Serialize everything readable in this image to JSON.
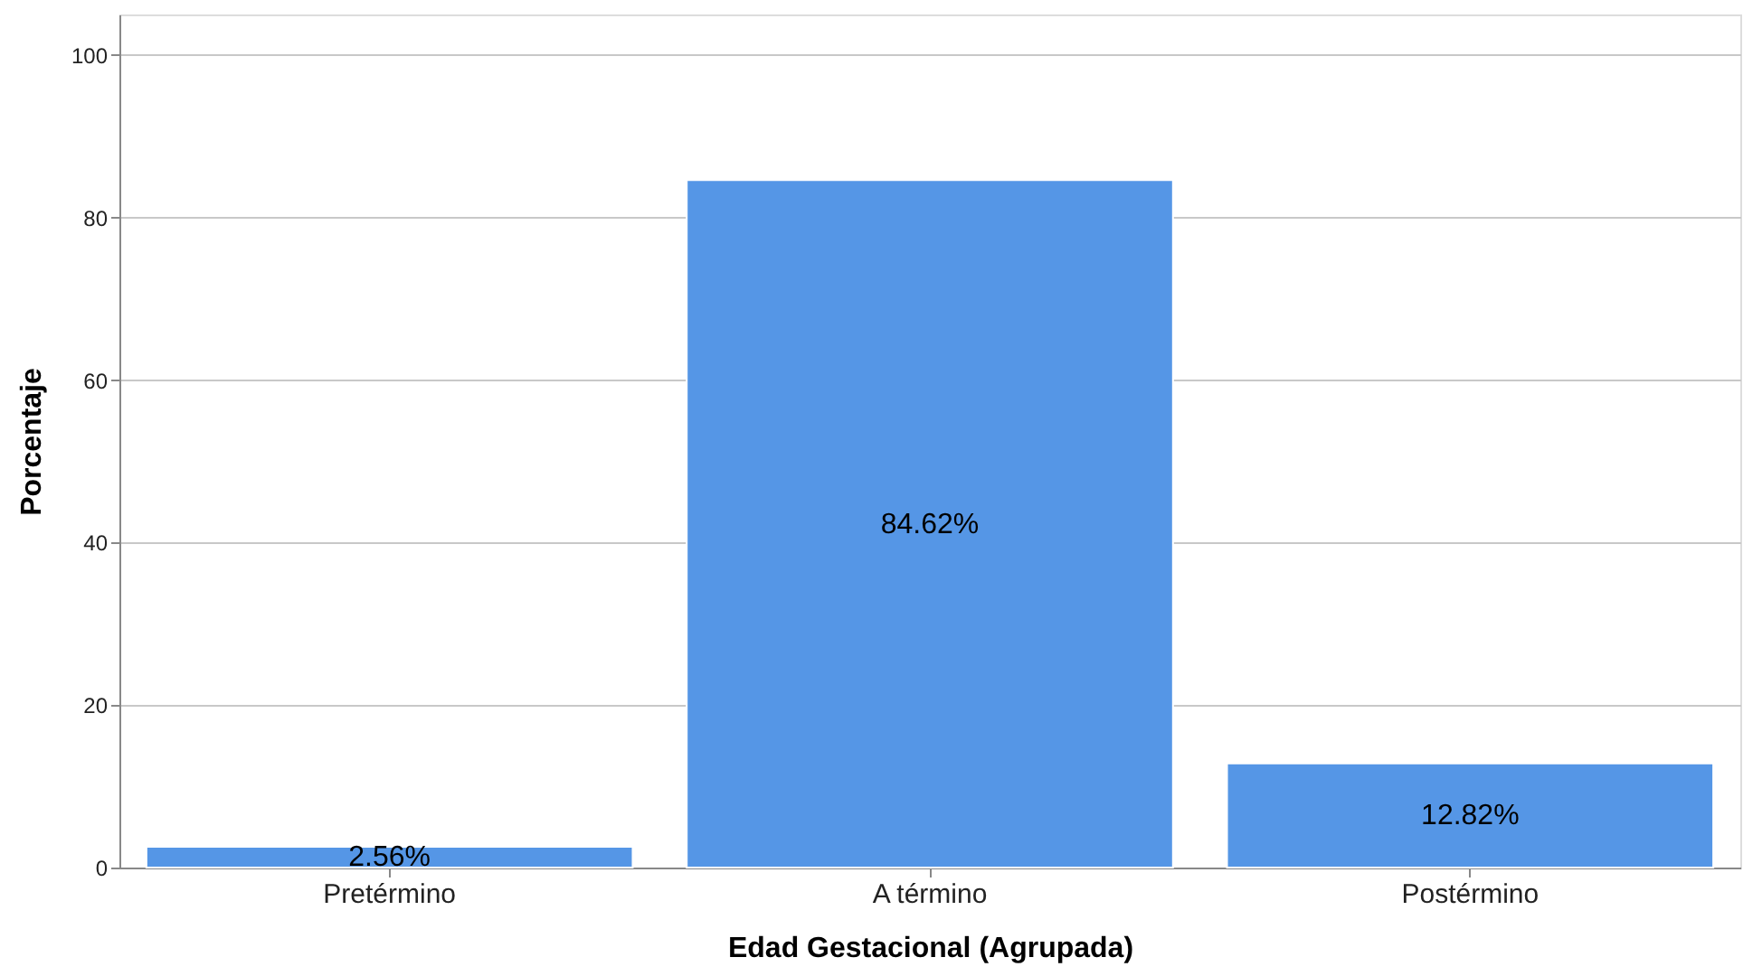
{
  "chart_data": {
    "type": "bar",
    "xlabel": "Edad Gestacional (Agrupada)",
    "ylabel": "Porcentaje",
    "categories": [
      "Pretérmino",
      "A término",
      "Postérmino"
    ],
    "values": [
      2.56,
      84.62,
      12.82
    ],
    "value_labels": [
      "2.56%",
      "84.62%",
      "12.82%"
    ],
    "color": "#5596e6",
    "ylim": [
      0,
      105
    ],
    "yticks": [
      0,
      20,
      40,
      60,
      80,
      100
    ],
    "grid": "y"
  }
}
